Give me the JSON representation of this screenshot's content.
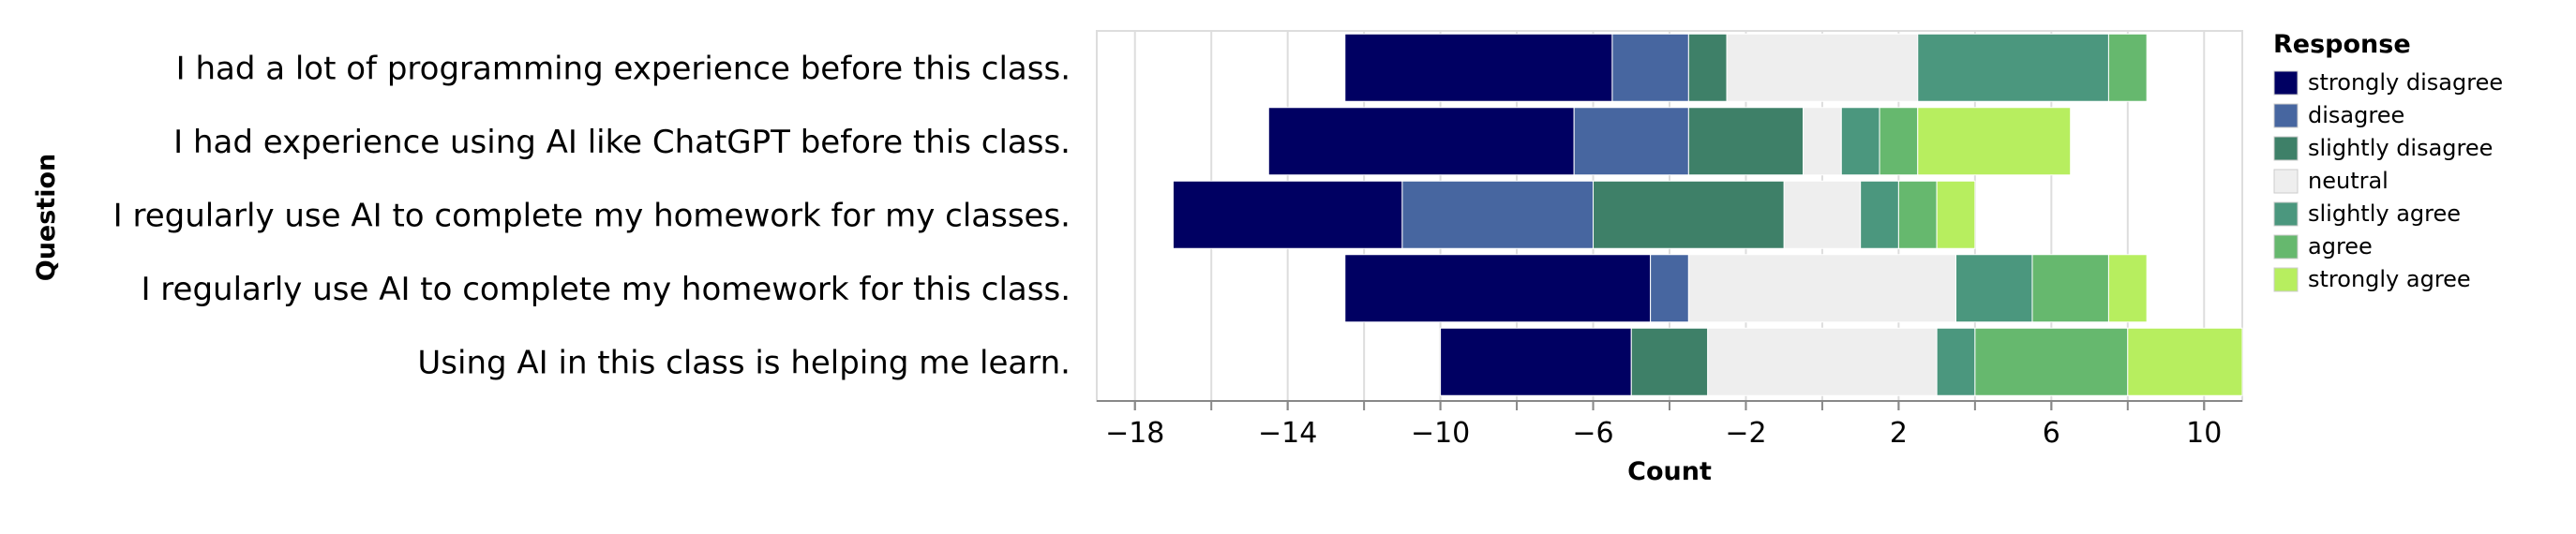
{
  "chart_data": {
    "type": "bar",
    "subtype": "diverging-stacked-horizontal",
    "xlabel": "Count",
    "ylabel": "Question",
    "xlim": [
      -19,
      11
    ],
    "xticks": [
      -18,
      -14,
      -10,
      -6,
      -2,
      2,
      6,
      10
    ],
    "xtick_labels": [
      "−18",
      "−14",
      "−10",
      "−6",
      "−2",
      "2",
      "6",
      "10"
    ],
    "grid": true,
    "categories": [
      "I had a lot of programming experience before this class.",
      "I had experience using AI like ChatGPT before this class.",
      "I regularly use AI to complete my homework for my classes.",
      "I regularly use AI to complete my homework for this class.",
      "Using AI in this class is helping me learn."
    ],
    "legend": {
      "title": "Response",
      "placement": "right"
    },
    "series": [
      {
        "name": "strongly disagree",
        "color": "#000062",
        "segments": [
          [
            -12.5,
            -5.5
          ],
          [
            -14.5,
            -6.5
          ],
          [
            -17,
            -11
          ],
          [
            -12.5,
            -4.5
          ],
          [
            -10,
            -5
          ]
        ]
      },
      {
        "name": "disagree",
        "color": "#4766a0",
        "segments": [
          [
            -5.5,
            -3.5
          ],
          [
            -6.5,
            -3.5
          ],
          [
            -11,
            -6
          ],
          [
            -4.5,
            -3.5
          ],
          [
            -5,
            -5
          ]
        ]
      },
      {
        "name": "slightly disagree",
        "color": "#3e8068",
        "segments": [
          [
            -3.5,
            -2.5
          ],
          [
            -3.5,
            -0.5
          ],
          [
            -6,
            -1
          ],
          [
            -3.5,
            -3.5
          ],
          [
            -5,
            -3
          ]
        ]
      },
      {
        "name": "neutral",
        "color": "#eeeeee",
        "segments": [
          [
            -2.5,
            2.5
          ],
          [
            -0.5,
            0.5
          ],
          [
            -1,
            1
          ],
          [
            -3.5,
            3.5
          ],
          [
            -3,
            3
          ]
        ]
      },
      {
        "name": "slightly agree",
        "color": "#4b977e",
        "segments": [
          [
            2.5,
            7.5
          ],
          [
            0.5,
            1.5
          ],
          [
            1,
            2
          ],
          [
            3.5,
            5.5
          ],
          [
            3,
            4
          ]
        ]
      },
      {
        "name": "agree",
        "color": "#66b86e",
        "segments": [
          [
            7.5,
            8.5
          ],
          [
            1.5,
            2.5
          ],
          [
            2,
            3
          ],
          [
            5.5,
            7.5
          ],
          [
            4,
            8
          ]
        ]
      },
      {
        "name": "strongly agree",
        "color": "#b7ee5f",
        "segments": [
          [
            8.5,
            8.5
          ],
          [
            2.5,
            6.5
          ],
          [
            3,
            4
          ],
          [
            7.5,
            8.5
          ],
          [
            8,
            11
          ]
        ]
      }
    ]
  }
}
